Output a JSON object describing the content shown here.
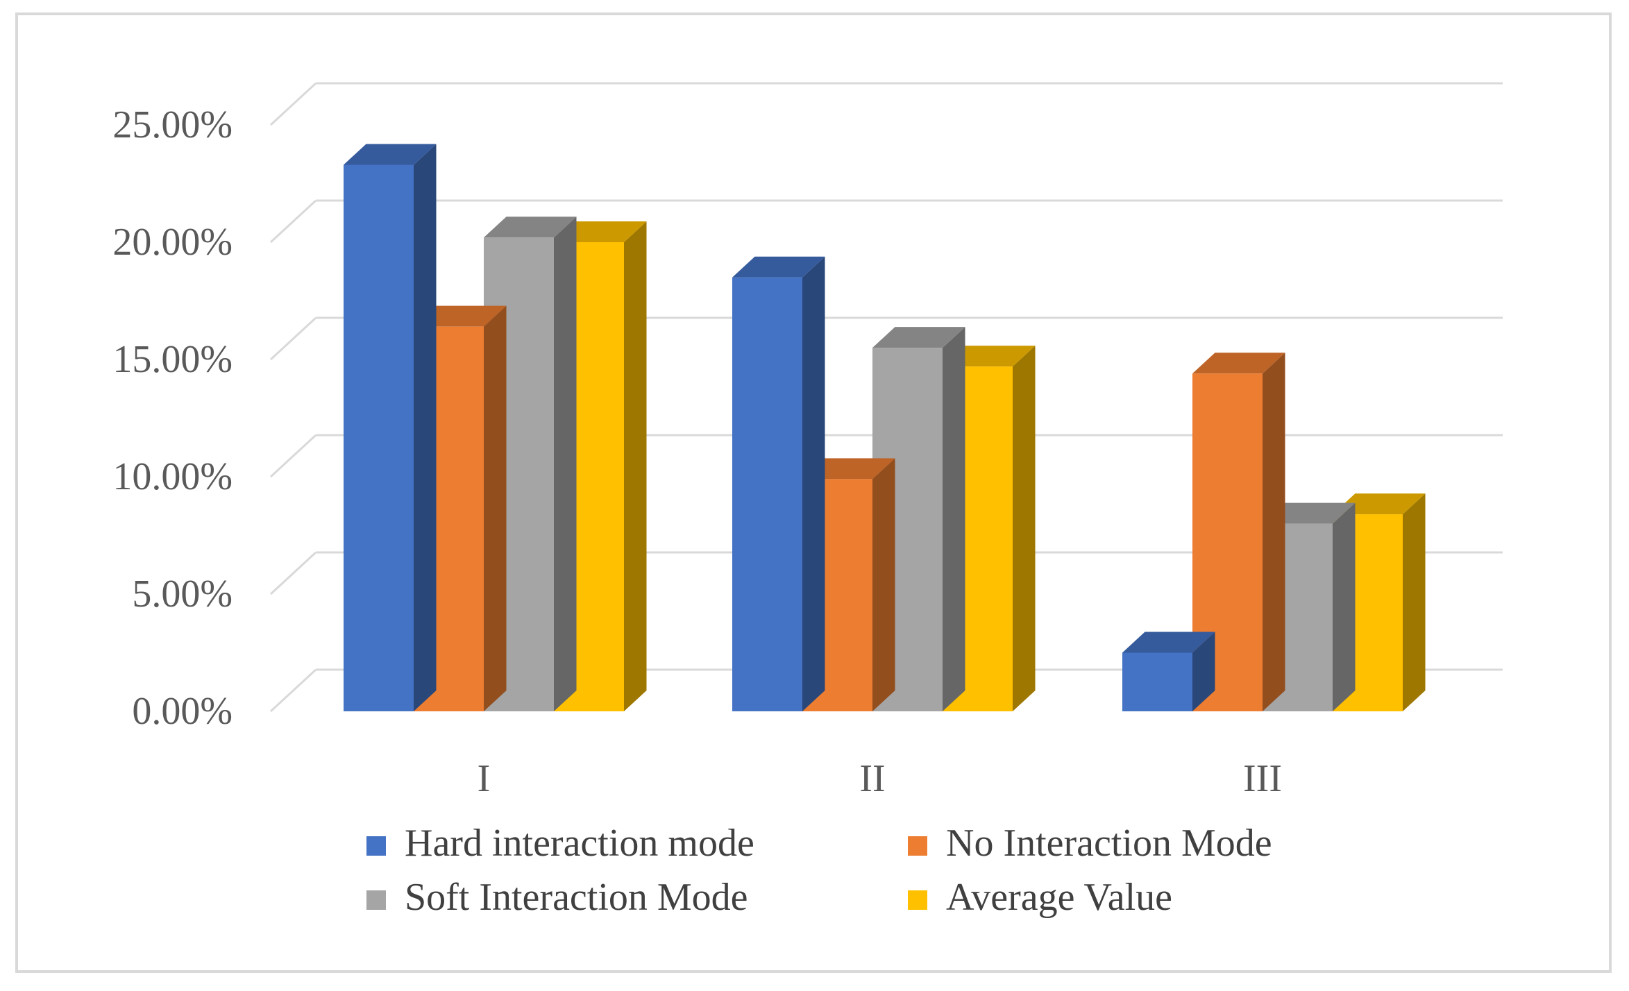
{
  "chart_data": {
    "type": "bar",
    "style": "3d-clustered-column",
    "title": "",
    "xlabel": "",
    "ylabel": "",
    "categories": [
      "I",
      "II",
      "III"
    ],
    "series": [
      {
        "name": "Hard interaction mode",
        "color": "#4472C4",
        "values": [
          23.3,
          18.5,
          2.5
        ]
      },
      {
        "name": "No Interaction Mode",
        "color": "#ED7D31",
        "values": [
          16.4,
          9.9,
          14.4
        ]
      },
      {
        "name": "Soft Interaction Mode",
        "color": "#A5A5A5",
        "values": [
          20.2,
          15.5,
          8.0
        ]
      },
      {
        "name": "Average Value",
        "color": "#FFC000",
        "values": [
          20.0,
          14.7,
          8.4
        ]
      }
    ],
    "ylim": [
      0,
      25
    ],
    "yticks": [
      0,
      5,
      10,
      15,
      20,
      25
    ],
    "ytick_labels": [
      "0.00%",
      "5.00%",
      "10.00%",
      "15.00%",
      "20.00%",
      "25.00%"
    ],
    "grid": true,
    "legend_position": "bottom"
  }
}
